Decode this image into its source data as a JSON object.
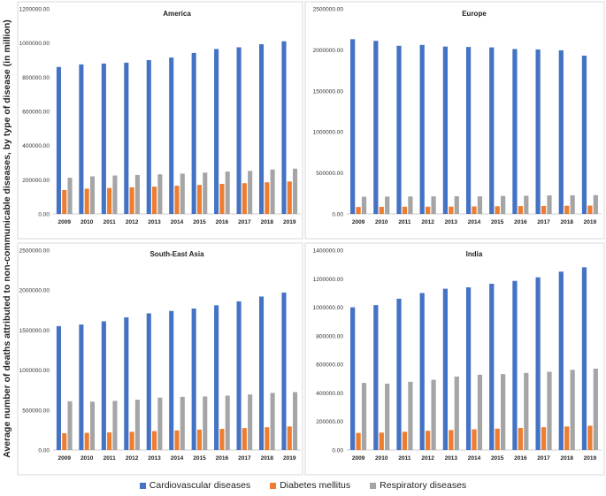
{
  "figure": {
    "y_axis_label": "Average number of deaths attributed to non-communicable diseases, by type of disease (in million)",
    "legend": [
      {
        "name": "Cardiovascular diseases",
        "color": "#4472C4"
      },
      {
        "name": "Diabetes mellitus",
        "color": "#ED7D31"
      },
      {
        "name": "Respiratory diseases",
        "color": "#A5A5A5"
      }
    ]
  },
  "chart_data": [
    {
      "type": "bar",
      "title": "America",
      "categories": [
        "2009",
        "2010",
        "2011",
        "2012",
        "2013",
        "2014",
        "2015",
        "2016",
        "2017",
        "2018",
        "2019"
      ],
      "ylim": [
        0,
        1200000
      ],
      "y_ticks": [
        "0.00",
        "200000.00",
        "400000.00",
        "600000.00",
        "800000.00",
        "1000000.00",
        "1200000.00"
      ],
      "series": [
        {
          "name": "Cardiovascular diseases",
          "values": [
            860000,
            875000,
            880000,
            885000,
            900000,
            915000,
            942000,
            965000,
            975000,
            993000,
            1010000
          ]
        },
        {
          "name": "Diabetes mellitus",
          "values": [
            140000,
            148000,
            152000,
            156000,
            160000,
            165000,
            170000,
            176000,
            180000,
            185000,
            190000
          ]
        },
        {
          "name": "Respiratory diseases",
          "values": [
            212000,
            220000,
            225000,
            228000,
            232000,
            236000,
            242000,
            248000,
            252000,
            260000,
            265000
          ]
        }
      ]
    },
    {
      "type": "bar",
      "title": "Europe",
      "categories": [
        "2009",
        "2010",
        "2011",
        "2012",
        "2013",
        "2014",
        "2015",
        "2016",
        "2017",
        "2018",
        "2019"
      ],
      "ylim": [
        0,
        2500000
      ],
      "y_ticks": [
        "0.00",
        "500000.00",
        "1000000.00",
        "1500000.00",
        "2000000.00",
        "2500000.00"
      ],
      "series": [
        {
          "name": "Cardiovascular diseases",
          "values": [
            2130000,
            2110000,
            2050000,
            2060000,
            2040000,
            2035000,
            2030000,
            2010000,
            2005000,
            1995000,
            1930000
          ]
        },
        {
          "name": "Diabetes mellitus",
          "values": [
            85000,
            87000,
            88000,
            89000,
            90000,
            92000,
            94000,
            96000,
            98000,
            100000,
            102000
          ]
        },
        {
          "name": "Respiratory diseases",
          "values": [
            210000,
            212000,
            213000,
            215000,
            216000,
            215000,
            220000,
            222000,
            226000,
            228000,
            230000
          ]
        }
      ]
    },
    {
      "type": "bar",
      "title": "South-East Asia",
      "categories": [
        "2009",
        "2010",
        "2011",
        "2012",
        "2013",
        "2014",
        "2015",
        "2016",
        "2017",
        "2018",
        "2019"
      ],
      "ylim": [
        0,
        2500000
      ],
      "y_ticks": [
        "0.00",
        "500000.00",
        "1000000.00",
        "1500000.00",
        "2000000.00",
        "2500000.00"
      ],
      "series": [
        {
          "name": "Cardiovascular diseases",
          "values": [
            1550000,
            1570000,
            1610000,
            1660000,
            1710000,
            1740000,
            1770000,
            1810000,
            1860000,
            1920000,
            1970000
          ]
        },
        {
          "name": "Diabetes mellitus",
          "values": [
            210000,
            215000,
            220000,
            228000,
            237000,
            245000,
            255000,
            265000,
            275000,
            285000,
            295000
          ]
        },
        {
          "name": "Respiratory diseases",
          "values": [
            610000,
            605000,
            615000,
            630000,
            655000,
            665000,
            670000,
            680000,
            695000,
            715000,
            725000
          ]
        }
      ]
    },
    {
      "type": "bar",
      "title": "India",
      "categories": [
        "2009",
        "2010",
        "2011",
        "2012",
        "2013",
        "2014",
        "2015",
        "2016",
        "2017",
        "2018",
        "2019"
      ],
      "ylim": [
        0,
        1400000
      ],
      "y_ticks": [
        "0.00",
        "200000.00",
        "400000.00",
        "600000.00",
        "800000.00",
        "1000000.00",
        "1200000.00",
        "1400000.00"
      ],
      "series": [
        {
          "name": "Cardiovascular diseases",
          "values": [
            1000000,
            1015000,
            1060000,
            1100000,
            1130000,
            1140000,
            1165000,
            1185000,
            1210000,
            1250000,
            1280000
          ]
        },
        {
          "name": "Diabetes mellitus",
          "values": [
            120000,
            122000,
            128000,
            135000,
            140000,
            145000,
            150000,
            155000,
            160000,
            165000,
            170000
          ]
        },
        {
          "name": "Respiratory diseases",
          "values": [
            470000,
            465000,
            478000,
            492000,
            515000,
            528000,
            532000,
            540000,
            548000,
            562000,
            570000
          ]
        }
      ]
    }
  ]
}
